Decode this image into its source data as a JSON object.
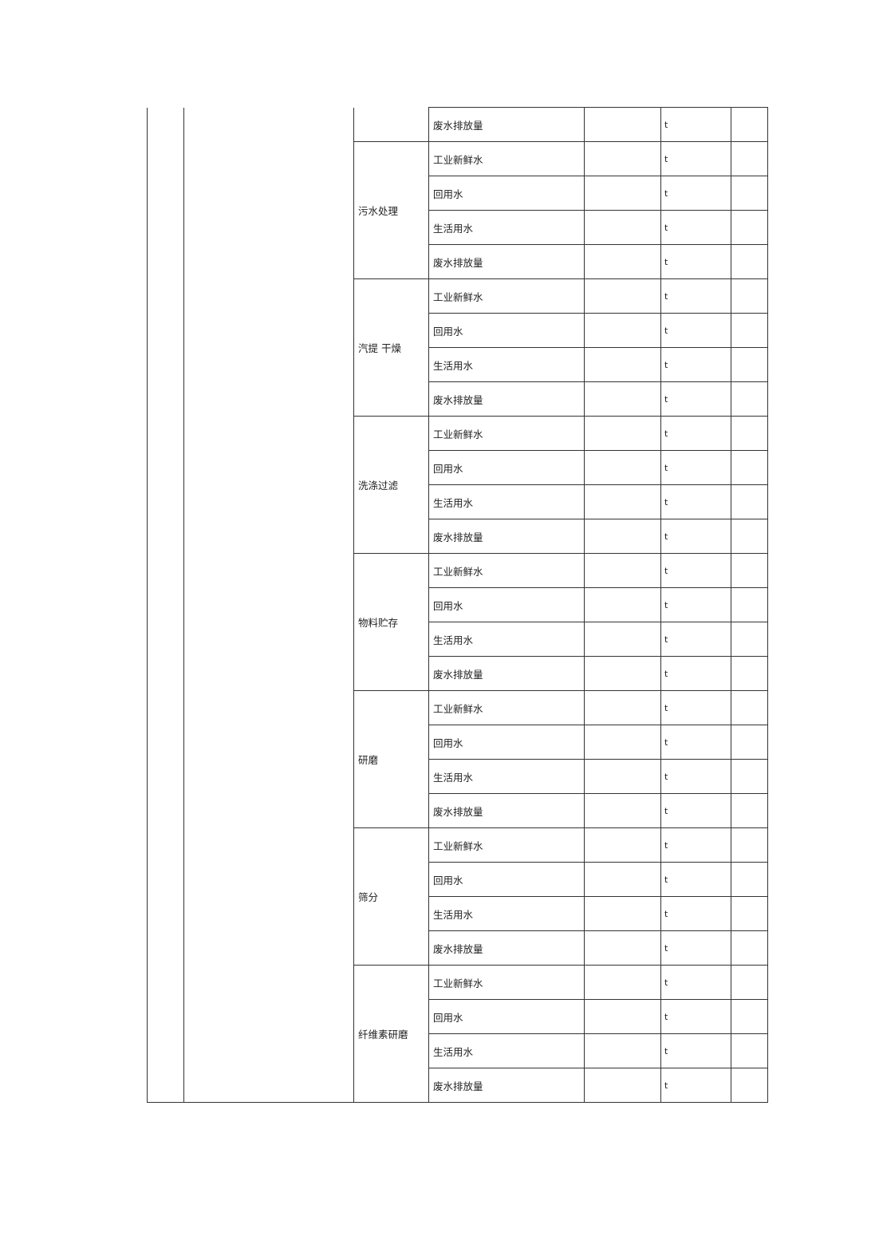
{
  "table": {
    "unit": "t",
    "groups": [
      {
        "process": "",
        "items": [
          "废水排放量"
        ]
      },
      {
        "process": "污水处理",
        "items": [
          "工业新鲜水",
          "回用水",
          "生活用水",
          "废水排放量"
        ]
      },
      {
        "process": "汽提 干燥",
        "items": [
          "工业新鲜水",
          "回用水",
          "生活用水",
          "废水排放量"
        ]
      },
      {
        "process": "洗涤过滤",
        "items": [
          "工业新鲜水",
          "回用水",
          "生活用水",
          "废水排放量"
        ]
      },
      {
        "process": "物料贮存",
        "items": [
          "工业新鲜水",
          "回用水",
          "生活用水",
          "废水排放量"
        ]
      },
      {
        "process": "研磨",
        "items": [
          "工业新鲜水",
          "回用水",
          "生活用水",
          "废水排放量"
        ]
      },
      {
        "process": "筛分",
        "items": [
          "工业新鲜水",
          "回用水",
          "生活用水",
          "废水排放量"
        ]
      },
      {
        "process": "纤维素研磨",
        "items": [
          "工业新鲜水",
          "回用水",
          "生活用水",
          "废水排放量"
        ]
      }
    ]
  }
}
